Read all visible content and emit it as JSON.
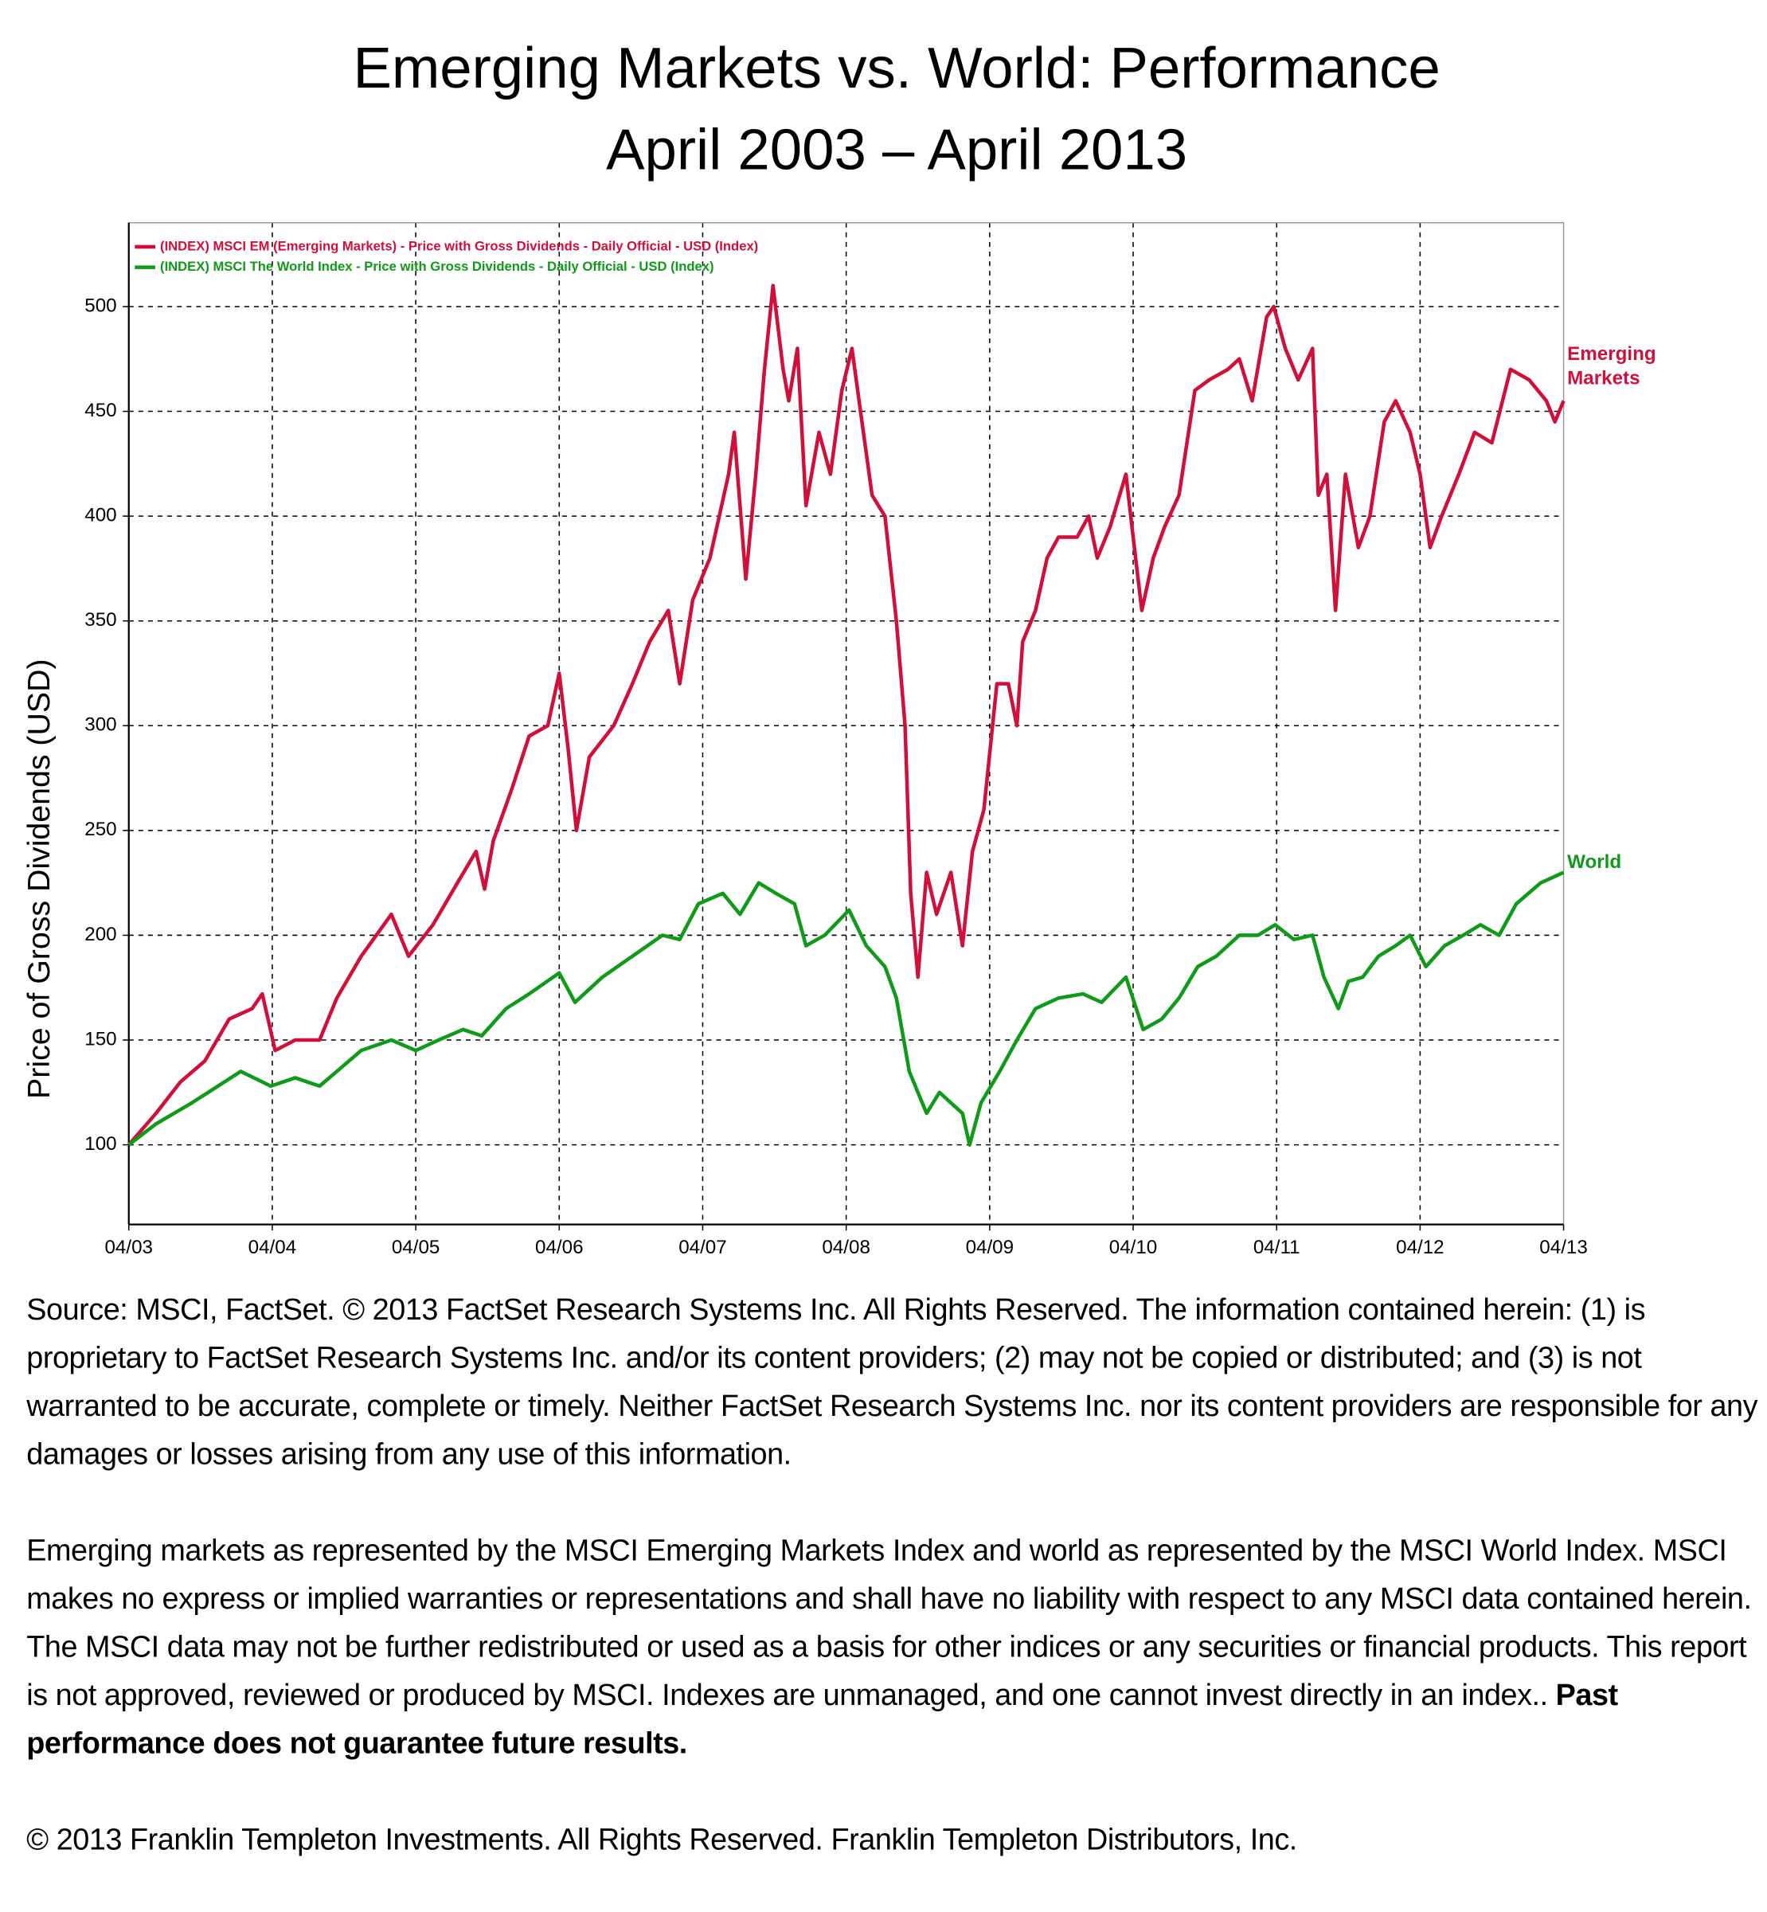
{
  "chart_data": {
    "type": "line",
    "title": [
      "Emerging Markets vs. World: Performance",
      "April 2003 – April 2013"
    ],
    "y_label": "Price of Gross Dividends (USD)",
    "xlim": [
      0,
      10
    ],
    "xticks": [
      {
        "value": 0,
        "label": "04/03"
      },
      {
        "value": 1,
        "label": "04/04"
      },
      {
        "value": 2,
        "label": "04/05"
      },
      {
        "value": 3,
        "label": "04/06"
      },
      {
        "value": 4,
        "label": "04/07"
      },
      {
        "value": 5,
        "label": "04/08"
      },
      {
        "value": 6,
        "label": "04/09"
      },
      {
        "value": 7,
        "label": "04/10"
      },
      {
        "value": 8,
        "label": "04/11"
      },
      {
        "value": 9,
        "label": "04/12"
      },
      {
        "value": 10,
        "label": "04/13"
      }
    ],
    "ylim": [
      62,
      540
    ],
    "yticks": [
      100,
      150,
      200,
      250,
      300,
      350,
      400,
      450,
      500
    ],
    "grid": true,
    "legend": "top-left",
    "series": [
      {
        "name": "(INDEX) MSCI EM (Emerging Markets) - Price with Gross Dividends - Daily Official - USD (Index)",
        "label": "Emerging Markets",
        "color": "#d0103a",
        "x": [
          0,
          0.19,
          0.36,
          0.53,
          0.7,
          0.86,
          0.93,
          1.02,
          1.16,
          1.33,
          1.45,
          1.62,
          1.83,
          1.95,
          2.12,
          2.29,
          2.42,
          2.48,
          2.54,
          2.67,
          2.79,
          2.92,
          3.0,
          3.06,
          3.12,
          3.21,
          3.38,
          3.51,
          3.63,
          3.76,
          3.84,
          3.93,
          4.05,
          4.18,
          4.22,
          4.3,
          4.37,
          4.43,
          4.49,
          4.56,
          4.6,
          4.66,
          4.72,
          4.81,
          4.89,
          4.97,
          5.04,
          5.1,
          5.18,
          5.27,
          5.35,
          5.41,
          5.45,
          5.5,
          5.56,
          5.63,
          5.73,
          5.81,
          5.88,
          5.96,
          6.05,
          6.13,
          6.19,
          6.23,
          6.32,
          6.4,
          6.48,
          6.61,
          6.69,
          6.75,
          6.84,
          6.95,
          7.0,
          7.06,
          7.14,
          7.22,
          7.32,
          7.43,
          7.53,
          7.66,
          7.74,
          7.83,
          7.93,
          7.98,
          8.06,
          8.15,
          8.25,
          8.29,
          8.35,
          8.41,
          8.48,
          8.57,
          8.65,
          8.75,
          8.83,
          8.93,
          9.0,
          9.07,
          9.15,
          9.27,
          9.38,
          9.5,
          9.63,
          9.76,
          9.88,
          9.94,
          10
        ],
        "values": [
          100,
          115,
          130,
          140,
          160,
          165,
          172,
          145,
          150,
          150,
          170,
          190,
          210,
          190,
          205,
          225,
          240,
          222,
          245,
          270,
          295,
          300,
          325,
          290,
          250,
          285,
          300,
          320,
          340,
          355,
          320,
          360,
          380,
          420,
          440,
          370,
          420,
          470,
          510,
          470,
          455,
          480,
          405,
          440,
          420,
          460,
          480,
          450,
          410,
          400,
          350,
          300,
          220,
          180,
          230,
          210,
          230,
          195,
          240,
          260,
          320,
          320,
          300,
          340,
          355,
          380,
          390,
          390,
          400,
          380,
          395,
          420,
          390,
          355,
          380,
          395,
          410,
          460,
          465,
          470,
          475,
          455,
          495,
          500,
          480,
          465,
          480,
          410,
          420,
          355,
          420,
          385,
          400,
          445,
          455,
          440,
          420,
          385,
          400,
          420,
          440,
          435,
          470,
          465,
          455,
          445,
          455
        ]
      },
      {
        "name": "(INDEX) MSCI The World Index - Price with Gross Dividends - Daily Official - USD (Index)",
        "label": "World",
        "color": "#0f9a1a",
        "x": [
          0,
          0.19,
          0.44,
          0.78,
          0.99,
          1.16,
          1.33,
          1.45,
          1.62,
          1.83,
          2.0,
          2.16,
          2.33,
          2.46,
          2.63,
          2.79,
          3.0,
          3.11,
          3.3,
          3.51,
          3.72,
          3.84,
          3.97,
          4.14,
          4.26,
          4.39,
          4.51,
          4.64,
          4.72,
          4.85,
          5.02,
          5.14,
          5.27,
          5.35,
          5.44,
          5.56,
          5.65,
          5.73,
          5.81,
          5.86,
          5.94,
          6.07,
          6.19,
          6.32,
          6.48,
          6.65,
          6.78,
          6.95,
          7.07,
          7.2,
          7.32,
          7.45,
          7.58,
          7.74,
          7.87,
          7.99,
          8.12,
          8.25,
          8.33,
          8.43,
          8.5,
          8.6,
          8.71,
          8.83,
          8.93,
          9.04,
          9.17,
          9.3,
          9.42,
          9.55,
          9.67,
          9.84,
          10
        ],
        "values": [
          100,
          110,
          120,
          135,
          128,
          132,
          128,
          135,
          145,
          150,
          145,
          150,
          155,
          152,
          165,
          172,
          182,
          168,
          180,
          190,
          200,
          198,
          215,
          220,
          210,
          225,
          220,
          215,
          195,
          200,
          212,
          195,
          185,
          170,
          135,
          115,
          125,
          120,
          115,
          100,
          120,
          135,
          150,
          165,
          170,
          172,
          168,
          180,
          155,
          160,
          170,
          185,
          190,
          200,
          200,
          205,
          198,
          200,
          180,
          165,
          178,
          180,
          190,
          195,
          200,
          185,
          195,
          200,
          205,
          200,
          215,
          225,
          230
        ]
      }
    ]
  },
  "notes": [
    [
      "Source: MSCI, FactSet. © 2013 FactSet Research Systems Inc. All Rights Reserved. The information contained herein: (1) is proprietary to FactSet Research Systems Inc. and/or its content providers; (2) may not be copied or distributed; and (3) is not warranted to be accurate, complete or timely. Neither FactSet Research Systems Inc. nor its content providers are responsible for any damages or losses arising from any use of this information."
    ],
    [
      "Emerging markets as represented by the MSCI Emerging Markets Index and world as represented by the MSCI World Index. MSCI makes no express or implied warranties or representations and shall have no liability with respect to any MSCI data contained herein. The MSCI data may not be further redistributed or used as a basis for other indices or any securities or financial products. This report is not approved, reviewed or produced by MSCI. Indexes are unmanaged, and one cannot invest directly in an index.. ",
      "Past performance does not guarantee future results."
    ],
    [
      "© 2013 Franklin Templeton Investments. All Rights Reserved. Franklin Templeton Distributors, Inc."
    ]
  ]
}
